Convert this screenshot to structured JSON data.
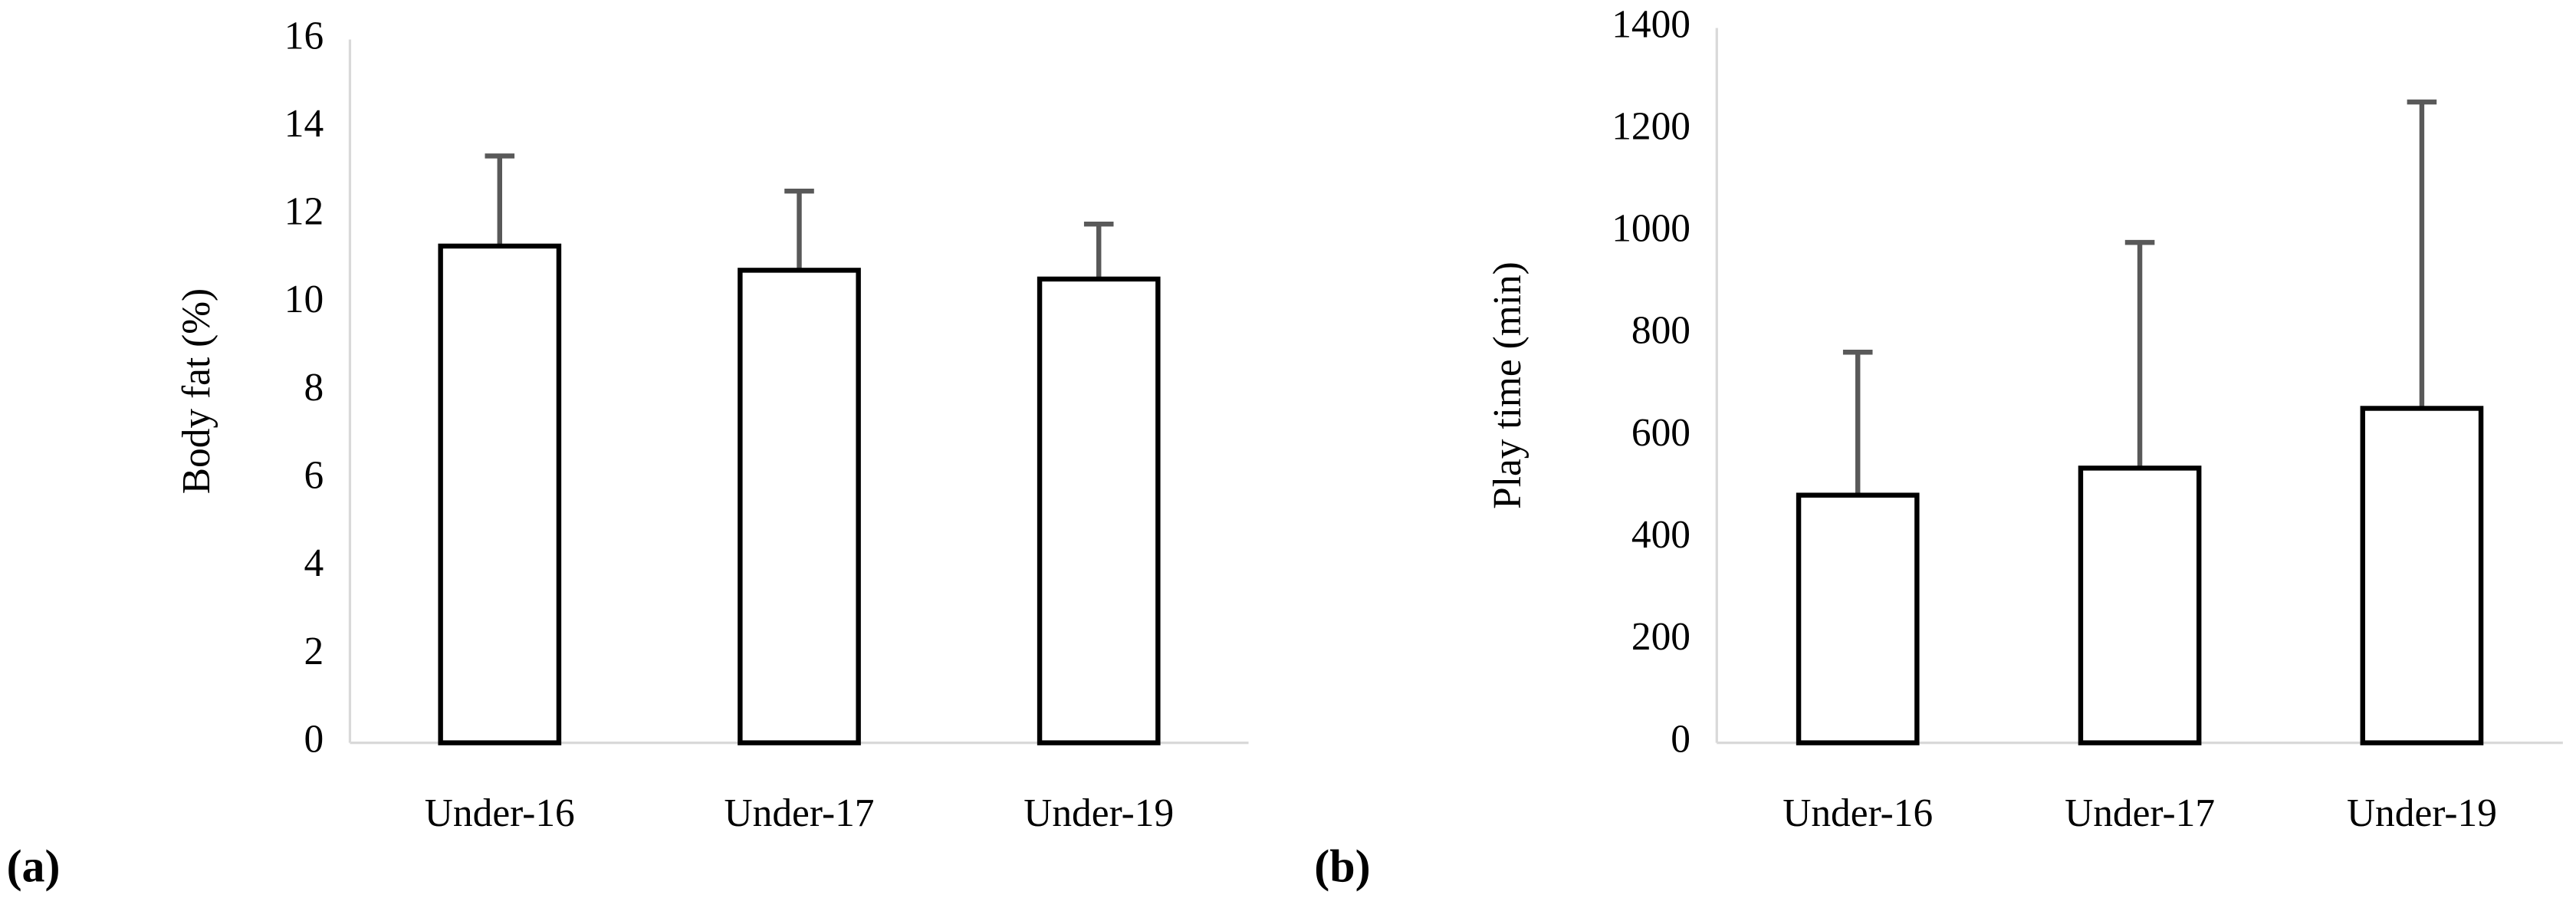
{
  "chart_data": [
    {
      "type": "bar",
      "label": "(a)",
      "y_label": "Body fat (%)",
      "categories": [
        "Under-16",
        "Under-17",
        "Under-19"
      ],
      "values": [
        11.3,
        10.75,
        10.55
      ],
      "errors": [
        2.05,
        1.8,
        1.25
      ],
      "color": "#ffffff",
      "edge_color": "#000000",
      "error_color": "#595959",
      "ylim": [
        0,
        16
      ],
      "yticks": [
        0,
        2,
        4,
        6,
        8,
        10,
        12,
        14,
        16
      ]
    },
    {
      "type": "bar",
      "label": "(b)",
      "y_label": "Play time (min)",
      "categories": [
        "Under-16",
        "Under-17",
        "Under-19"
      ],
      "values": [
        485,
        538,
        655
      ],
      "errors": [
        280,
        442,
        600
      ],
      "color": "#ffffff",
      "edge_color": "#000000",
      "error_color": "#595959",
      "ylim": [
        0,
        1400
      ],
      "yticks": [
        0,
        200,
        400,
        600,
        800,
        1000,
        1200,
        1400
      ]
    }
  ]
}
